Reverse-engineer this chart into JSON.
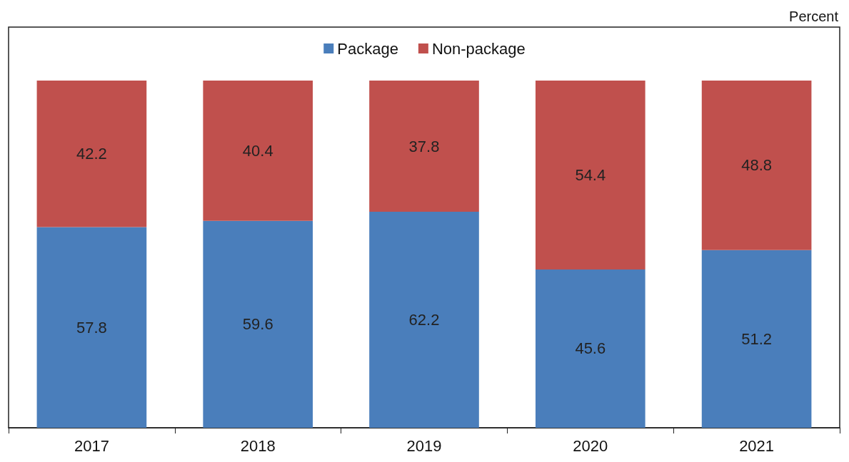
{
  "chart_data": {
    "type": "bar",
    "ylabel": "Percent",
    "categories": [
      "2017",
      "2018",
      "2019",
      "2020",
      "2021"
    ],
    "series": [
      {
        "name": "Package",
        "color": "#4a7ebb",
        "values": [
          57.8,
          59.6,
          62.2,
          45.6,
          51.2
        ]
      },
      {
        "name": "Non-package",
        "color": "#c0504d",
        "values": [
          42.2,
          40.4,
          37.8,
          54.4,
          48.8
        ]
      }
    ],
    "stacked": true,
    "data_labels": true,
    "legend": "top"
  }
}
